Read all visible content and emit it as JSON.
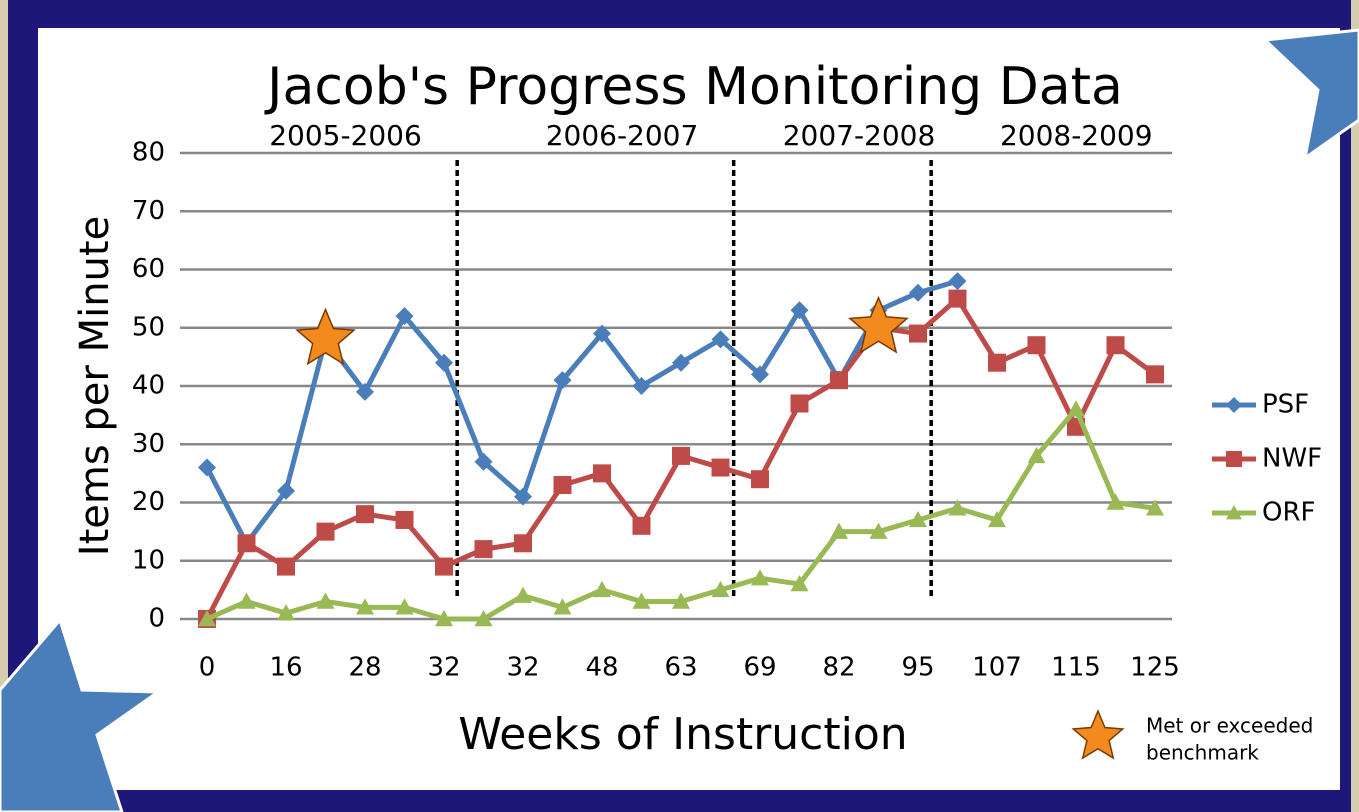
{
  "chart_data": {
    "type": "line",
    "title": "Jacob's Progress Monitoring Data",
    "x_label": "Weeks of Instruction",
    "y_label": "Items per Minute",
    "categories": [
      "0",
      null,
      "16",
      null,
      "28",
      null,
      "32",
      null,
      "32",
      null,
      "48",
      null,
      "63",
      null,
      "69",
      null,
      "82",
      null,
      "95",
      null,
      "107",
      null,
      "115",
      null,
      "125"
    ],
    "series": [
      {
        "name": "PSF",
        "color": "#4a7ebb",
        "marker": "diamond",
        "values": [
          26,
          13,
          22,
          48,
          39,
          52,
          44,
          27,
          21,
          41,
          49,
          40,
          44,
          48,
          42,
          53,
          41,
          53,
          56,
          58,
          null,
          null,
          null,
          null,
          null
        ]
      },
      {
        "name": "NWF",
        "color": "#be4b48",
        "marker": "square",
        "values": [
          0,
          13,
          9,
          15,
          18,
          17,
          9,
          12,
          13,
          23,
          25,
          16,
          28,
          26,
          24,
          37,
          41,
          50,
          49,
          55,
          44,
          47,
          33,
          47,
          42
        ]
      },
      {
        "name": "ORF",
        "color": "#98b954",
        "marker": "triangle",
        "values": [
          0,
          3,
          1,
          3,
          2,
          2,
          0,
          0,
          4,
          2,
          5,
          3,
          3,
          5,
          7,
          6,
          15,
          15,
          17,
          19,
          17,
          28,
          36,
          20,
          19
        ]
      }
    ],
    "periods": [
      {
        "label": "2005-2006",
        "start": 0,
        "end": 6
      },
      {
        "label": "2006-2007",
        "start": 7,
        "end": 13
      },
      {
        "label": "2007-2008",
        "start": 14,
        "end": 18
      },
      {
        "label": "2008-2009",
        "start": 19,
        "end": 24
      }
    ],
    "benchmarks": [
      {
        "series": 0,
        "index": 3
      },
      {
        "series": 1,
        "index": 17
      }
    ],
    "benchmark_legend": [
      "Met or exceeded",
      "benchmark"
    ],
    "ylim": [
      0,
      80
    ],
    "yticks": [
      0,
      10,
      20,
      30,
      40,
      50,
      60,
      70,
      80
    ],
    "grid": true,
    "legend": "right"
  }
}
